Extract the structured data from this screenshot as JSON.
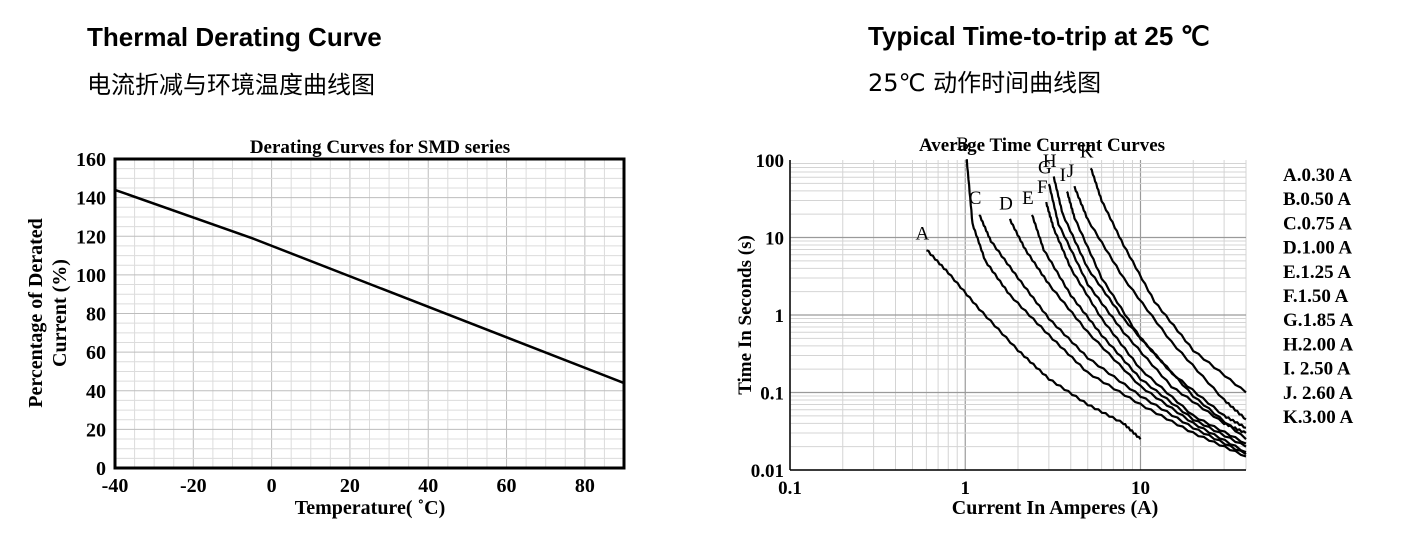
{
  "headings": {
    "left_title": "Thermal Derating Curve",
    "left_subtitle": "电流折减与环境温度曲线图",
    "right_title": "Typical Time-to-trip at 25 ℃",
    "right_subtitle": "25℃ 动作时间曲线图"
  },
  "chart_data": [
    {
      "type": "line",
      "title": "Derating Curves for SMD series",
      "xlabel": "Temperature( ˚C)",
      "ylabel": "Percentage of Derated Current (%)",
      "xlim": [
        -40,
        90
      ],
      "ylim": [
        0,
        160
      ],
      "xticks": [
        -40,
        -20,
        0,
        20,
        40,
        60,
        80
      ],
      "yticks": [
        0,
        20,
        40,
        60,
        80,
        100,
        120,
        140,
        160
      ],
      "grid": true,
      "series": [
        {
          "x": [
            -40,
            -5,
            90
          ],
          "y": [
            144,
            119,
            44
          ]
        }
      ]
    },
    {
      "type": "line",
      "title": "Average Time Current Curves",
      "xlabel": "Current In Amperes (A)",
      "ylabel": "Time In Seconds (s)",
      "xscale": "log",
      "yscale": "log",
      "xlim": [
        0.1,
        40
      ],
      "ylim": [
        0.01,
        100
      ],
      "xticks": [
        "0.1",
        "1",
        "10"
      ],
      "yticks": [
        "100",
        "10",
        "1",
        "0.1",
        "0.01"
      ],
      "grid": true,
      "legend": [
        "A.0.30 A",
        "B.0.50 A",
        "C.0.75 A",
        "D.1.00 A",
        "E.1.25 A",
        "F.1.50 A",
        "G.1.85 A",
        "H.2.00 A",
        "I. 2.50 A",
        "J. 2.60 A",
        "K.3.00 A"
      ],
      "series": [
        {
          "name": "A",
          "x": [
            0.6,
            0.8,
            1.2,
            2,
            3,
            5,
            8,
            10
          ],
          "y": [
            7,
            3.5,
            1.2,
            0.35,
            0.15,
            0.07,
            0.04,
            0.025
          ]
        },
        {
          "name": "B",
          "x": [
            1.02,
            1.1,
            1.3,
            1.8,
            3,
            5,
            10,
            20,
            40
          ],
          "y": [
            100,
            15,
            5,
            1.8,
            0.55,
            0.18,
            0.07,
            0.03,
            0.015
          ]
        },
        {
          "name": "C",
          "x": [
            1.2,
            1.4,
            2,
            3,
            5,
            10,
            20,
            40
          ],
          "y": [
            20,
            9,
            3,
            0.9,
            0.28,
            0.09,
            0.035,
            0.016
          ]
        },
        {
          "name": "D",
          "x": [
            1.8,
            2.2,
            3,
            5,
            10,
            20,
            40
          ],
          "y": [
            17,
            7,
            2.5,
            0.6,
            0.12,
            0.04,
            0.017
          ]
        },
        {
          "name": "E",
          "x": [
            2.4,
            2.8,
            4,
            6,
            10,
            20,
            40
          ],
          "y": [
            20,
            7,
            1.8,
            0.55,
            0.15,
            0.045,
            0.02
          ]
        },
        {
          "name": "F",
          "x": [
            2.9,
            3.2,
            4,
            6,
            10,
            20,
            40
          ],
          "y": [
            28,
            13,
            4,
            0.9,
            0.2,
            0.05,
            0.022
          ]
        },
        {
          "name": "G",
          "x": [
            3,
            3.4,
            5,
            8,
            15,
            30,
            40
          ],
          "y": [
            50,
            15,
            2.5,
            0.6,
            0.12,
            0.04,
            0.03
          ]
        },
        {
          "name": "H",
          "x": [
            3.2,
            3.6,
            5,
            8,
            15,
            30,
            40
          ],
          "y": [
            60,
            20,
            4,
            0.9,
            0.18,
            0.05,
            0.035
          ]
        },
        {
          "name": "I",
          "x": [
            3.8,
            4.2,
            6,
            10,
            20,
            40
          ],
          "y": [
            40,
            18,
            3,
            0.5,
            0.09,
            0.025
          ]
        },
        {
          "name": "J",
          "x": [
            4.2,
            5,
            8,
            15,
            30,
            40
          ],
          "y": [
            45,
            17,
            3,
            0.45,
            0.08,
            0.045
          ]
        },
        {
          "name": "K",
          "x": [
            5.2,
            6,
            8,
            12,
            20,
            40
          ],
          "y": [
            80,
            30,
            8,
            1.5,
            0.35,
            0.1
          ]
        }
      ]
    }
  ]
}
